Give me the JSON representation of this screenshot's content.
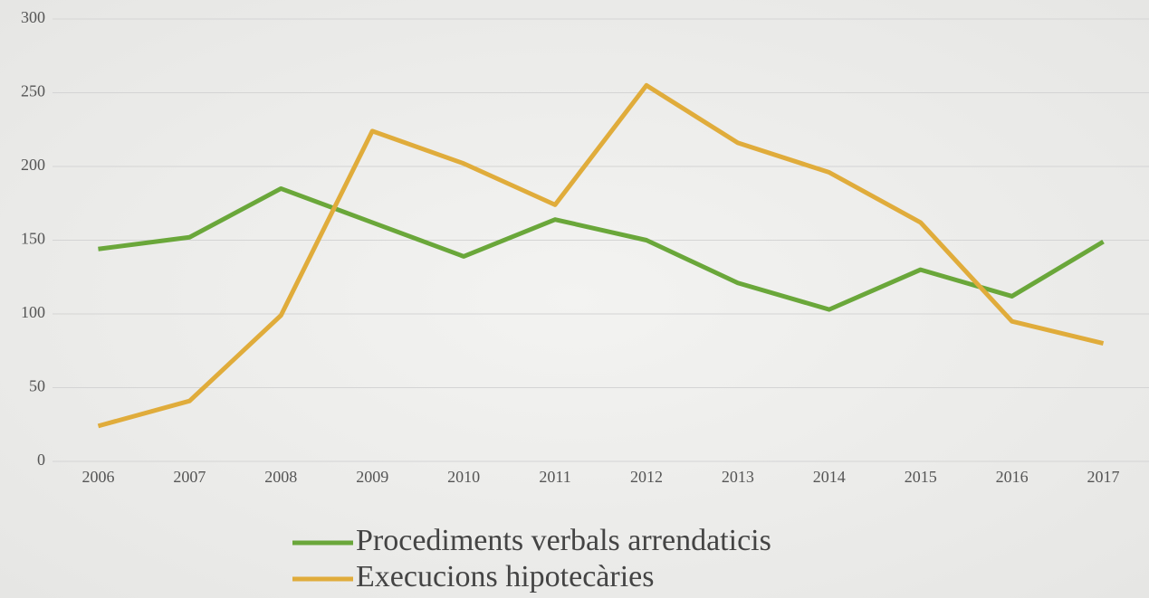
{
  "chart_data": {
    "type": "line",
    "categories": [
      "2006",
      "2007",
      "2008",
      "2009",
      "2010",
      "2011",
      "2012",
      "2013",
      "2014",
      "2015",
      "2016",
      "2017"
    ],
    "series": [
      {
        "name": "Procediments verbals arrendaticis",
        "color": "#6aa73a",
        "values": [
          144,
          152,
          185,
          162,
          139,
          164,
          150,
          121,
          103,
          130,
          112,
          149
        ]
      },
      {
        "name": "Execucions hipotecàries",
        "color": "#e0ac3b",
        "values": [
          24,
          41,
          99,
          224,
          202,
          174,
          255,
          216,
          196,
          162,
          95,
          80
        ]
      }
    ],
    "ylim": [
      0,
      300
    ],
    "yticks": [
      0,
      50,
      100,
      150,
      200,
      250,
      300
    ],
    "grid": true,
    "legend": "bottom"
  }
}
